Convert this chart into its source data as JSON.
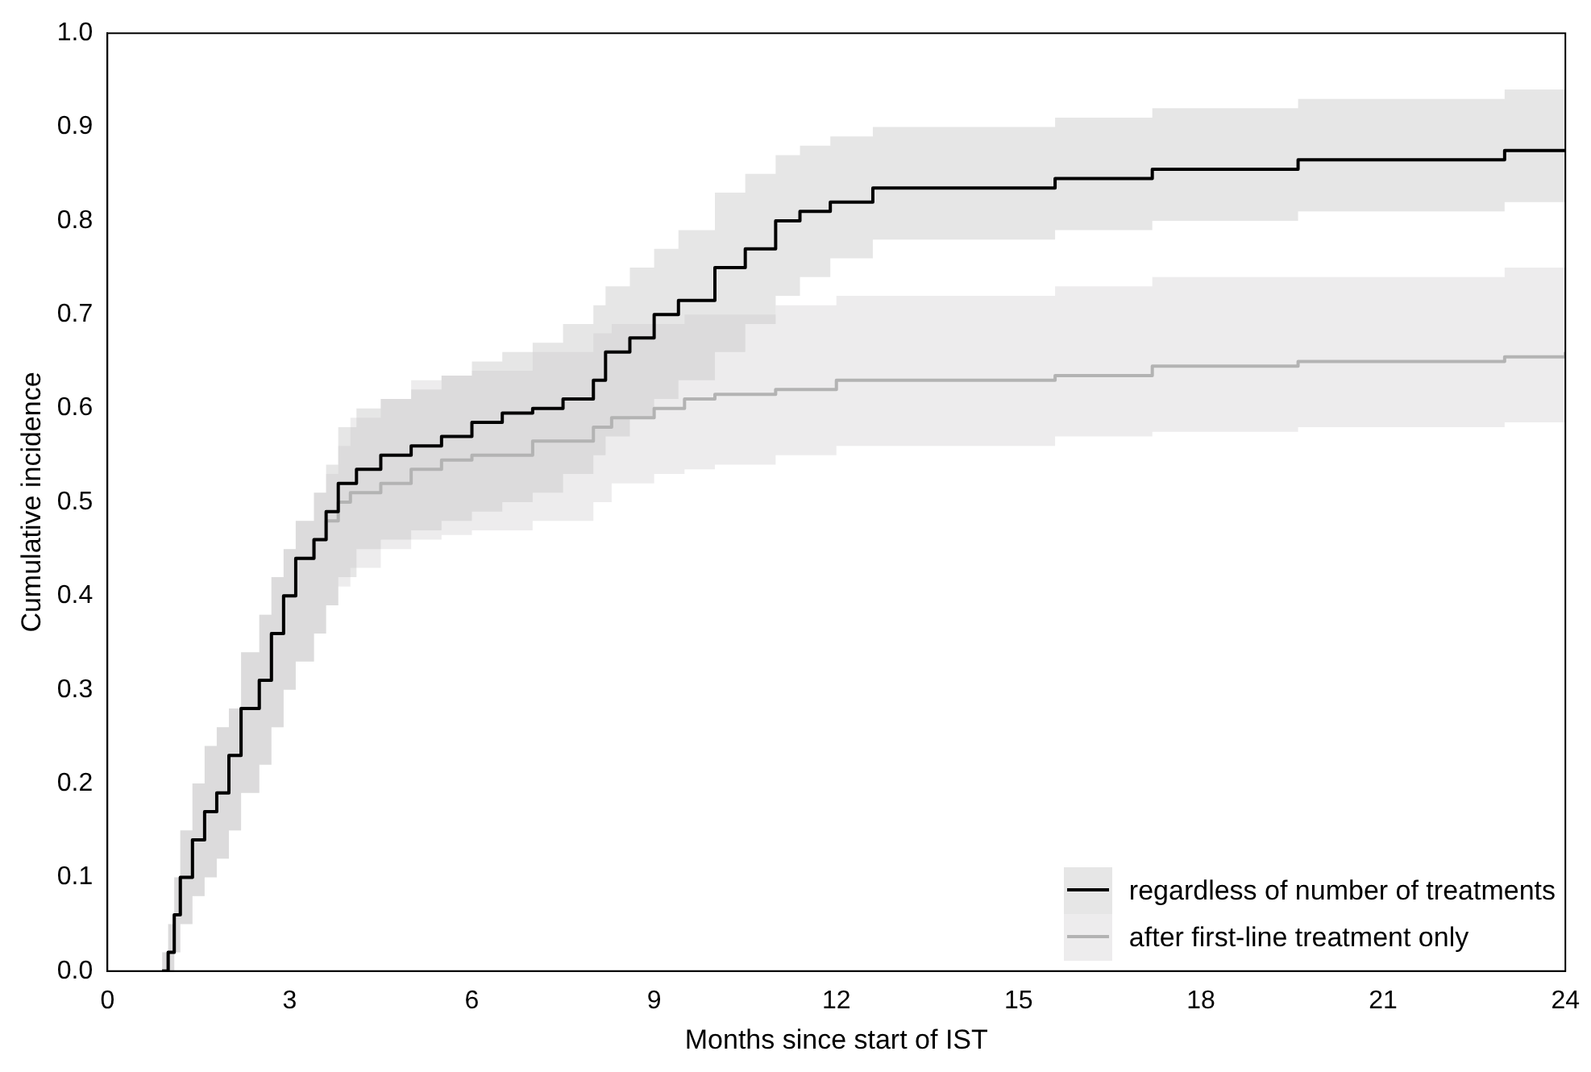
{
  "chart_data": {
    "type": "step",
    "xlabel": "Months since start of IST",
    "ylabel": "Cumulative incidence",
    "xlim": [
      0,
      24
    ],
    "xticks": [
      0,
      3,
      6,
      9,
      12,
      15,
      18,
      21,
      24
    ],
    "ylim": [
      0,
      1
    ],
    "yticks": [
      {
        "value": 0,
        "label": "0.0"
      },
      0.1,
      0.2,
      0.3,
      0.4,
      0.5,
      0.6,
      0.7,
      0.8,
      0.9,
      {
        "value": 1,
        "label": "1.0"
      }
    ],
    "legend": "bottom right",
    "series": [
      {
        "name": "regardless of number of treatments",
        "color": "#000000",
        "x": [
          0.9,
          1.0,
          1.1,
          1.2,
          1.4,
          1.6,
          1.8,
          2.0,
          2.2,
          2.5,
          2.7,
          2.9,
          3.1,
          3.4,
          3.6,
          3.8,
          4.1,
          4.5,
          5.0,
          5.5,
          6.0,
          6.5,
          7.0,
          7.5,
          8.0,
          8.2,
          8.6,
          9.0,
          9.4,
          10.0,
          10.5,
          11.0,
          11.4,
          11.9,
          12.6,
          15.6,
          17.2,
          19.6,
          23.0,
          24.0
        ],
        "values": [
          0,
          0.02,
          0.06,
          0.1,
          0.14,
          0.17,
          0.19,
          0.23,
          0.28,
          0.31,
          0.36,
          0.4,
          0.44,
          0.46,
          0.49,
          0.52,
          0.535,
          0.55,
          0.56,
          0.57,
          0.585,
          0.595,
          0.6,
          0.61,
          0.63,
          0.66,
          0.675,
          0.7,
          0.715,
          0.75,
          0.77,
          0.8,
          0.81,
          0.82,
          0.835,
          0.845,
          0.855,
          0.865,
          0.875,
          0.875
        ],
        "lower": [
          0,
          0,
          0.02,
          0.05,
          0.08,
          0.1,
          0.12,
          0.15,
          0.19,
          0.22,
          0.26,
          0.3,
          0.33,
          0.36,
          0.39,
          0.42,
          0.45,
          0.46,
          0.47,
          0.48,
          0.49,
          0.5,
          0.51,
          0.53,
          0.55,
          0.57,
          0.59,
          0.61,
          0.63,
          0.66,
          0.69,
          0.72,
          0.74,
          0.76,
          0.78,
          0.79,
          0.8,
          0.81,
          0.82,
          0.82
        ],
        "upper": [
          0.02,
          0.05,
          0.1,
          0.15,
          0.2,
          0.24,
          0.26,
          0.28,
          0.34,
          0.38,
          0.42,
          0.45,
          0.48,
          0.51,
          0.54,
          0.58,
          0.6,
          0.61,
          0.62,
          0.635,
          0.65,
          0.66,
          0.67,
          0.69,
          0.71,
          0.73,
          0.75,
          0.77,
          0.79,
          0.83,
          0.85,
          0.87,
          0.88,
          0.89,
          0.9,
          0.91,
          0.92,
          0.93,
          0.94,
          0.94
        ]
      },
      {
        "name": "after first-line treatment only",
        "color": "#b3b3b3",
        "x": [
          0.9,
          1.0,
          1.1,
          1.2,
          1.4,
          1.6,
          1.8,
          2.0,
          2.2,
          2.5,
          2.7,
          2.9,
          3.1,
          3.4,
          3.6,
          3.8,
          4.0,
          4.5,
          5.0,
          5.5,
          6.0,
          7.0,
          8.0,
          8.3,
          9.0,
          9.5,
          10.0,
          11.0,
          12.0,
          15.6,
          17.2,
          19.6,
          23.0,
          24.0
        ],
        "values": [
          0,
          0.02,
          0.06,
          0.1,
          0.14,
          0.17,
          0.19,
          0.23,
          0.28,
          0.31,
          0.36,
          0.4,
          0.44,
          0.46,
          0.48,
          0.5,
          0.51,
          0.52,
          0.535,
          0.545,
          0.55,
          0.565,
          0.58,
          0.59,
          0.6,
          0.61,
          0.615,
          0.62,
          0.63,
          0.635,
          0.645,
          0.65,
          0.655,
          0.66
        ],
        "lower": [
          0,
          0,
          0.02,
          0.05,
          0.08,
          0.1,
          0.12,
          0.15,
          0.19,
          0.22,
          0.26,
          0.3,
          0.33,
          0.36,
          0.39,
          0.41,
          0.43,
          0.45,
          0.46,
          0.465,
          0.47,
          0.48,
          0.5,
          0.52,
          0.53,
          0.535,
          0.54,
          0.55,
          0.56,
          0.57,
          0.575,
          0.58,
          0.585,
          0.585
        ],
        "upper": [
          0.02,
          0.05,
          0.1,
          0.15,
          0.2,
          0.24,
          0.26,
          0.28,
          0.34,
          0.38,
          0.42,
          0.45,
          0.48,
          0.51,
          0.53,
          0.56,
          0.59,
          0.61,
          0.63,
          0.635,
          0.64,
          0.66,
          0.68,
          0.69,
          0.69,
          0.7,
          0.7,
          0.71,
          0.72,
          0.73,
          0.74,
          0.74,
          0.75,
          0.75
        ]
      }
    ]
  }
}
